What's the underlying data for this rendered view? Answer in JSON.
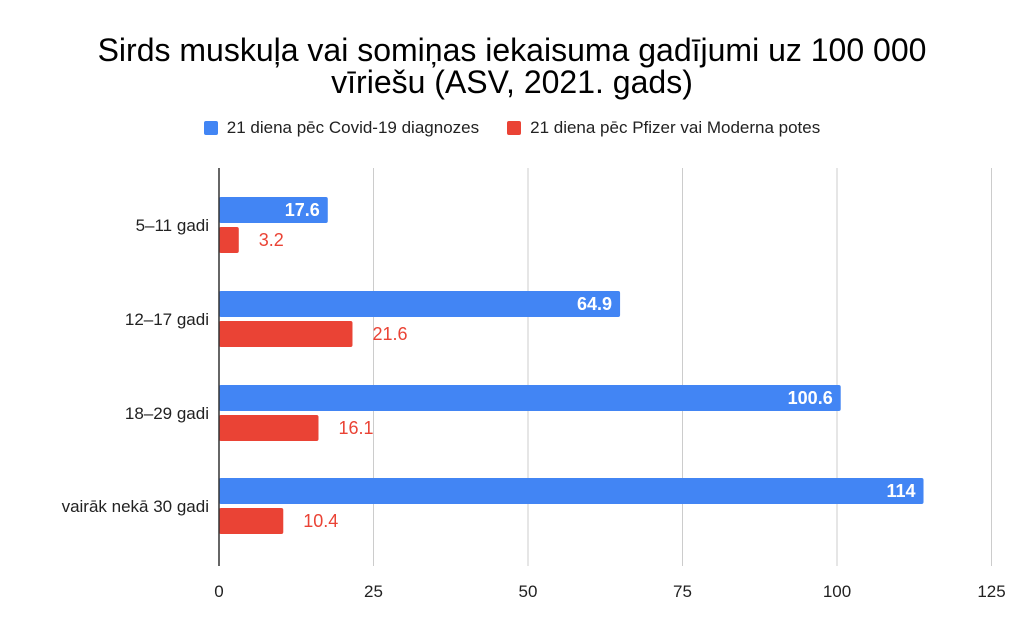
{
  "chart_data": {
    "type": "bar",
    "orientation": "horizontal",
    "title": "Sirds muskuļa vai somiņas iekaisuma gadījumi uz 100 000 vīriešu (ASV, 2021. gads)",
    "title_lines": [
      "Sirds muskuļa vai somiņas iekaisuma gadījumi uz 100 000",
      "vīriešu (ASV, 2021. gads)"
    ],
    "xlabel": "",
    "ylabel": "",
    "categories": [
      "5–11 gadi",
      "12–17 gadi",
      "18–29 gadi",
      "vairāk nekā 30 gadi"
    ],
    "series": [
      {
        "name": "21 diena pēc Covid-19 diagnozes",
        "color": "#4285F4",
        "label_color": "#ffffff",
        "values": [
          17.6,
          64.9,
          100.6,
          114
        ]
      },
      {
        "name": "21 diena pēc Pfizer vai Moderna potes",
        "color": "#EA4335",
        "label_color": "#EA4335",
        "values": [
          3.2,
          21.6,
          16.1,
          10.4
        ]
      }
    ],
    "value_labels": [
      [
        "17.6",
        "64.9",
        "100.6",
        "114"
      ],
      [
        "3.2",
        "21.6",
        "16.1",
        "10.4"
      ]
    ],
    "xlim": [
      0,
      125
    ],
    "xticks": [
      "0",
      "25",
      "50",
      "75",
      "100",
      "125"
    ],
    "xtick_values": [
      0,
      25,
      50,
      75,
      100,
      125
    ],
    "grid": "vertical",
    "legend_position": "top"
  }
}
